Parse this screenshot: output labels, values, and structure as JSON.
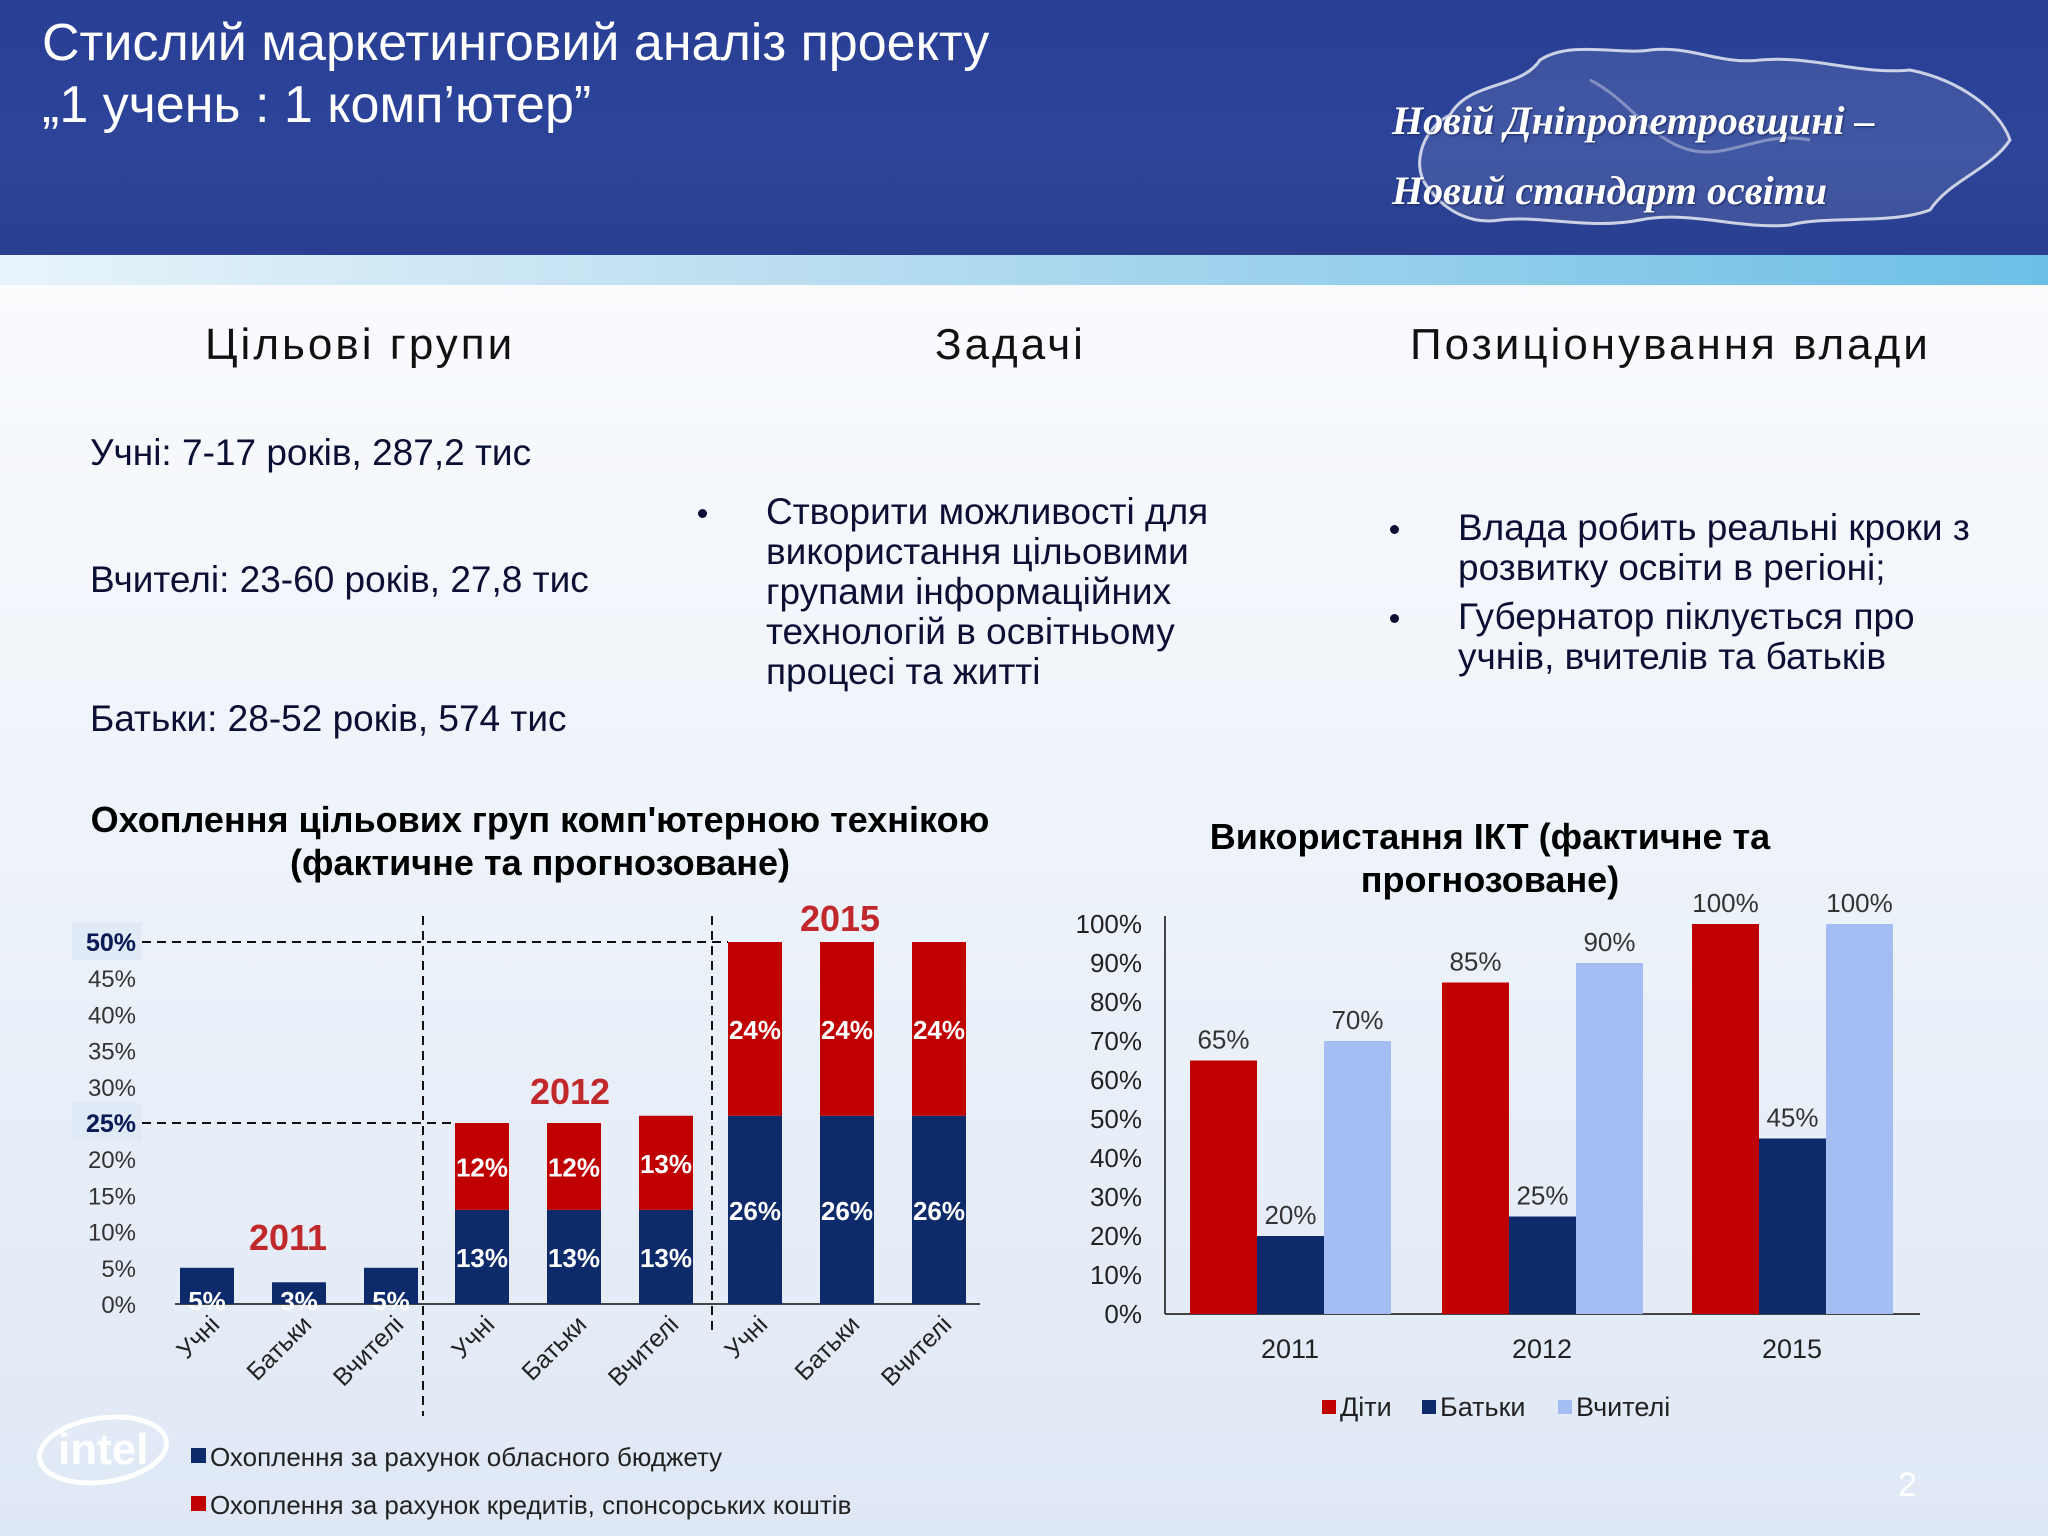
{
  "header": {
    "title_line1": "Стислий маркетинговий аналіз проекту",
    "title_line2": "„1 учень : 1 комп’ютер”",
    "slogan_line1": "Новій Дніпропетровщині  –",
    "slogan_line2": "Новий стандарт освіти"
  },
  "columns": {
    "groups_heading": "Цільові групи",
    "tasks_heading": "Задачі",
    "positioning_heading": "Позиціонування влади"
  },
  "groups": [
    "Учні: 7-17 років, 287,2 тис",
    "Вчителі: 23-60 років, 27,8 тис",
    "Батьки: 28-52 років, 574 тис"
  ],
  "tasks": [
    "Створити можливості для використання цільовими групами інформаційних технологій в освітньому процесі та житті"
  ],
  "positioning": [
    "Влада робить реальні кроки з розвитку освіти в регіоні;",
    "Губернатор піклується про учнів, вчителів та батьків"
  ],
  "colors": {
    "header_blue": "#2c4499",
    "navy": "#0d2a6b",
    "red": "#c00000",
    "light_blue": "#a4bdf2",
    "year_red": "#c0282c"
  },
  "logo_text": "intel",
  "page_number": "2",
  "chart_data": [
    {
      "type": "bar",
      "stacked": true,
      "title": "Охоплення цільових груп комп'ютерною технікою (фактичне та прогнозоване)",
      "groups": [
        "2011",
        "2012",
        "2015"
      ],
      "categories": [
        "Учні",
        "Батьки",
        "Вчителі"
      ],
      "series": [
        {
          "name": "Охоплення за рахунок обласного бюджету",
          "values": [
            [
              5,
              3,
              5
            ],
            [
              13,
              13,
              13
            ],
            [
              26,
              26,
              26
            ]
          ],
          "labels": [
            [
              "5%",
              "3%",
              "5%"
            ],
            [
              "13%",
              "13%",
              "13%"
            ],
            [
              "26%",
              "26%",
              "26%"
            ]
          ]
        },
        {
          "name": "Охоплення за рахунок кредитів, спонсорських коштів",
          "values": [
            [
              0,
              0,
              0
            ],
            [
              12,
              12,
              13
            ],
            [
              24,
              24,
              24
            ]
          ],
          "labels": [
            [
              "",
              "",
              ""
            ],
            [
              "12%",
              "12%",
              "13%"
            ],
            [
              "24%",
              "24%",
              "24%"
            ]
          ]
        }
      ],
      "yticks": [
        "0%",
        "5%",
        "10%",
        "15%",
        "20%",
        "25%",
        "30%",
        "35%",
        "40%",
        "45%",
        "50%"
      ],
      "ylim": [
        0,
        50
      ],
      "reference_lines": [
        "25%",
        "50%"
      ],
      "legend_position": "bottom-left"
    },
    {
      "type": "bar",
      "title": "Використання ІКТ (фактичне та прогнозоване)",
      "categories": [
        "2011",
        "2012",
        "2015"
      ],
      "series": [
        {
          "name": "Діти",
          "values": [
            65,
            85,
            100
          ],
          "labels": [
            "65%",
            "85%",
            "100%"
          ]
        },
        {
          "name": "Батьки",
          "values": [
            20,
            25,
            45
          ],
          "labels": [
            "20%",
            "25%",
            "45%"
          ]
        },
        {
          "name": "Вчителі",
          "values": [
            70,
            90,
            100
          ],
          "labels": [
            "70%",
            "90%",
            "100%"
          ]
        }
      ],
      "yticks": [
        "0%",
        "10%",
        "20%",
        "30%",
        "40%",
        "50%",
        "60%",
        "70%",
        "80%",
        "90%",
        "100%"
      ],
      "ylim": [
        0,
        100
      ],
      "legend_position": "bottom"
    }
  ]
}
